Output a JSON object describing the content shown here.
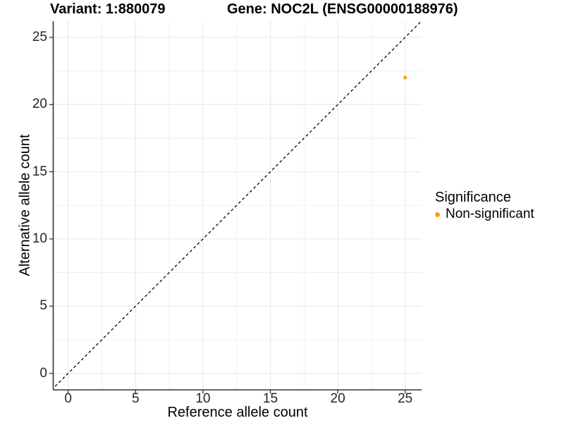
{
  "header": {
    "variant_label": "Variant: 1:880079",
    "gene_label": "Gene: NOC2L (ENSG00000188976)"
  },
  "chart_data": {
    "type": "scatter",
    "title": "Variant: 1:880079   Gene: NOC2L (ENSG00000188976)",
    "xlabel": "Reference allele count",
    "ylabel": "Alternative allele count",
    "xlim": [
      -1.25,
      26.25
    ],
    "ylim": [
      -1.25,
      26.25
    ],
    "x_ticks": [
      0,
      5,
      10,
      15,
      20,
      25
    ],
    "y_ticks": [
      0,
      5,
      10,
      15,
      20,
      25
    ],
    "grid": {
      "visible": true,
      "major_every": 5,
      "minor_every": 2.5
    },
    "series": [
      {
        "name": "Non-significant",
        "color": "#FB9E15",
        "points": [
          {
            "x": 25,
            "y": 22
          }
        ]
      }
    ],
    "reference_line": {
      "kind": "identity y=x",
      "style": "dashed",
      "color": "#000000",
      "from": [
        -1.25,
        -1.25
      ],
      "to": [
        26.25,
        26.25
      ]
    },
    "legend": {
      "title": "Significance",
      "position": "right",
      "entries": [
        {
          "label": "Non-significant",
          "color": "#FB9E15",
          "marker": "circle"
        }
      ]
    }
  },
  "colors": {
    "background": "#FFFFFF",
    "grid_major": "#E6E6E6",
    "grid_minor": "#F0F0F0",
    "axis_line": "#333333",
    "tick_mark": "#333333",
    "tick_label": "#262626",
    "title_text": "#000000",
    "point": "#FB9E15"
  }
}
